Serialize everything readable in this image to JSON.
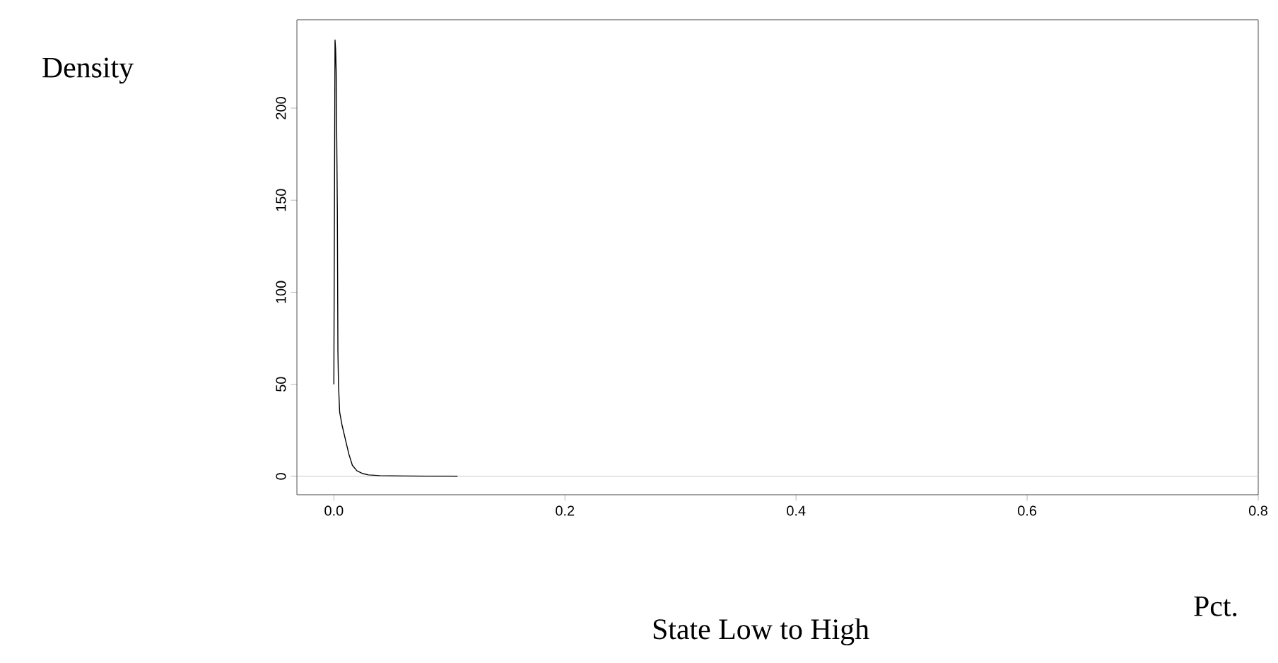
{
  "chart_data": {
    "type": "line",
    "xlabel": "State Low to High",
    "ylabel": "Density",
    "annotations": [
      "Pct."
    ],
    "x": [
      0.0,
      0.0005,
      0.001,
      0.0015,
      0.002,
      0.003,
      0.0035,
      0.004,
      0.005,
      0.007,
      0.01,
      0.013,
      0.016,
      0.02,
      0.025,
      0.03,
      0.04,
      0.06,
      0.08,
      0.1,
      0.107
    ],
    "series": [
      {
        "color": "#000000",
        "values": [
          50,
          145,
          237,
          232,
          220,
          145,
          68,
          50,
          35,
          28,
          20,
          12,
          6,
          3,
          1.5,
          0.8,
          0.4,
          0.2,
          0.1,
          0.1,
          0
        ]
      }
    ],
    "xlim": [
      -0.032,
      0.8
    ],
    "ylim": [
      -10,
      248
    ],
    "xticks": [
      {
        "value": 0,
        "label": "0.0"
      },
      0.2,
      0.4,
      0.6,
      0.8
    ],
    "yticks": [
      0,
      50,
      100,
      150,
      200
    ],
    "ref_lines": [
      {
        "axis": "y",
        "value": 0,
        "color": "#bebebe"
      }
    ],
    "marker": "none",
    "line_style": "solid"
  }
}
